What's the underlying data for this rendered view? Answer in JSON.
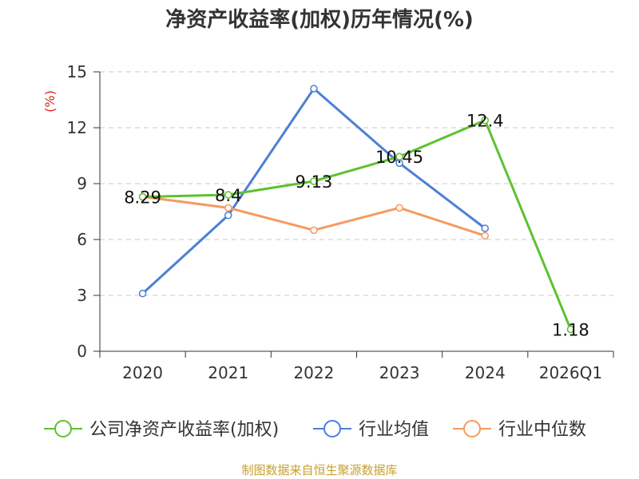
{
  "title": "净资产收益率(加权)历年情况(%)",
  "footer": "制图数据来自恒生聚源数据库",
  "chart_data": {
    "type": "line",
    "title": "净资产收益率(加权)历年情况(%)",
    "ylabel": "(%)",
    "xlabel": "",
    "ylim": [
      0,
      15
    ],
    "yticks": [
      0,
      3,
      6,
      9,
      12,
      15
    ],
    "grid": true,
    "legend_position": "bottom",
    "categories": [
      "2020",
      "2021",
      "2022",
      "2023",
      "2024",
      "2026Q1"
    ],
    "series": [
      {
        "name": "公司净资产收益率(加权)",
        "color": "#5cc22f",
        "values": [
          8.29,
          8.4,
          9.13,
          10.45,
          12.4,
          1.18
        ],
        "labels": [
          "8.29",
          "8.4",
          "9.13",
          "10.45",
          "12.4",
          "1.18"
        ]
      },
      {
        "name": "行业均值",
        "color": "#4d7fd6",
        "values": [
          3.1,
          7.3,
          14.1,
          10.1,
          6.6,
          null
        ]
      },
      {
        "name": "行业中位数",
        "color": "#f59a61",
        "values": [
          8.3,
          7.7,
          6.5,
          7.7,
          6.2,
          null
        ]
      }
    ]
  }
}
